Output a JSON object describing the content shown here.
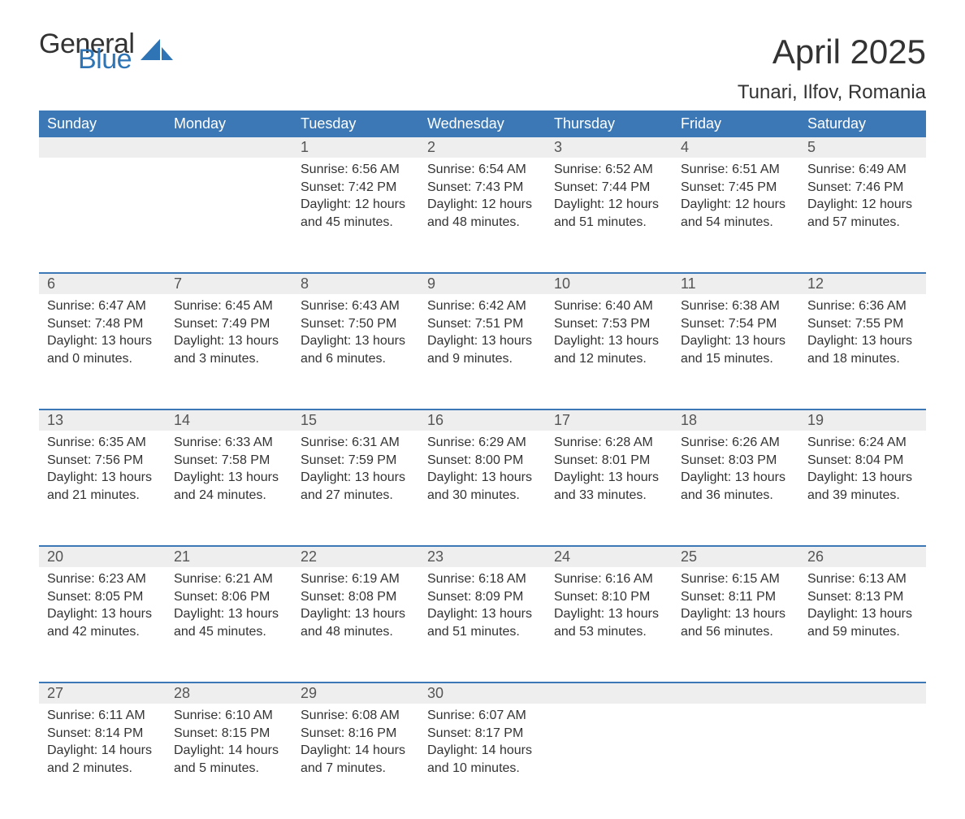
{
  "brand": {
    "part1": "General",
    "part2": "Blue"
  },
  "title": "April 2025",
  "location": "Tunari, Ilfov, Romania",
  "colors": {
    "header_bg": "#3b78b5",
    "header_text": "#ffffff",
    "daynum_bg": "#eeeeee",
    "border_top": "#3b78b5",
    "body_text": "#333333",
    "logo_blue": "#2f75b5",
    "page_bg": "#ffffff"
  },
  "fonts": {
    "title_size": 42,
    "location_size": 24,
    "header_size": 18,
    "daynum_size": 18,
    "cell_size": 16
  },
  "weekdays": [
    "Sunday",
    "Monday",
    "Tuesday",
    "Wednesday",
    "Thursday",
    "Friday",
    "Saturday"
  ],
  "weeks": [
    [
      null,
      null,
      {
        "day": "1",
        "sunrise": "6:56 AM",
        "sunset": "7:42 PM",
        "dl_h": "12",
        "dl_m": "45"
      },
      {
        "day": "2",
        "sunrise": "6:54 AM",
        "sunset": "7:43 PM",
        "dl_h": "12",
        "dl_m": "48"
      },
      {
        "day": "3",
        "sunrise": "6:52 AM",
        "sunset": "7:44 PM",
        "dl_h": "12",
        "dl_m": "51"
      },
      {
        "day": "4",
        "sunrise": "6:51 AM",
        "sunset": "7:45 PM",
        "dl_h": "12",
        "dl_m": "54"
      },
      {
        "day": "5",
        "sunrise": "6:49 AM",
        "sunset": "7:46 PM",
        "dl_h": "12",
        "dl_m": "57"
      }
    ],
    [
      {
        "day": "6",
        "sunrise": "6:47 AM",
        "sunset": "7:48 PM",
        "dl_h": "13",
        "dl_m": "0"
      },
      {
        "day": "7",
        "sunrise": "6:45 AM",
        "sunset": "7:49 PM",
        "dl_h": "13",
        "dl_m": "3"
      },
      {
        "day": "8",
        "sunrise": "6:43 AM",
        "sunset": "7:50 PM",
        "dl_h": "13",
        "dl_m": "6"
      },
      {
        "day": "9",
        "sunrise": "6:42 AM",
        "sunset": "7:51 PM",
        "dl_h": "13",
        "dl_m": "9"
      },
      {
        "day": "10",
        "sunrise": "6:40 AM",
        "sunset": "7:53 PM",
        "dl_h": "13",
        "dl_m": "12"
      },
      {
        "day": "11",
        "sunrise": "6:38 AM",
        "sunset": "7:54 PM",
        "dl_h": "13",
        "dl_m": "15"
      },
      {
        "day": "12",
        "sunrise": "6:36 AM",
        "sunset": "7:55 PM",
        "dl_h": "13",
        "dl_m": "18"
      }
    ],
    [
      {
        "day": "13",
        "sunrise": "6:35 AM",
        "sunset": "7:56 PM",
        "dl_h": "13",
        "dl_m": "21"
      },
      {
        "day": "14",
        "sunrise": "6:33 AM",
        "sunset": "7:58 PM",
        "dl_h": "13",
        "dl_m": "24"
      },
      {
        "day": "15",
        "sunrise": "6:31 AM",
        "sunset": "7:59 PM",
        "dl_h": "13",
        "dl_m": "27"
      },
      {
        "day": "16",
        "sunrise": "6:29 AM",
        "sunset": "8:00 PM",
        "dl_h": "13",
        "dl_m": "30"
      },
      {
        "day": "17",
        "sunrise": "6:28 AM",
        "sunset": "8:01 PM",
        "dl_h": "13",
        "dl_m": "33"
      },
      {
        "day": "18",
        "sunrise": "6:26 AM",
        "sunset": "8:03 PM",
        "dl_h": "13",
        "dl_m": "36"
      },
      {
        "day": "19",
        "sunrise": "6:24 AM",
        "sunset": "8:04 PM",
        "dl_h": "13",
        "dl_m": "39"
      }
    ],
    [
      {
        "day": "20",
        "sunrise": "6:23 AM",
        "sunset": "8:05 PM",
        "dl_h": "13",
        "dl_m": "42"
      },
      {
        "day": "21",
        "sunrise": "6:21 AM",
        "sunset": "8:06 PM",
        "dl_h": "13",
        "dl_m": "45"
      },
      {
        "day": "22",
        "sunrise": "6:19 AM",
        "sunset": "8:08 PM",
        "dl_h": "13",
        "dl_m": "48"
      },
      {
        "day": "23",
        "sunrise": "6:18 AM",
        "sunset": "8:09 PM",
        "dl_h": "13",
        "dl_m": "51"
      },
      {
        "day": "24",
        "sunrise": "6:16 AM",
        "sunset": "8:10 PM",
        "dl_h": "13",
        "dl_m": "53"
      },
      {
        "day": "25",
        "sunrise": "6:15 AM",
        "sunset": "8:11 PM",
        "dl_h": "13",
        "dl_m": "56"
      },
      {
        "day": "26",
        "sunrise": "6:13 AM",
        "sunset": "8:13 PM",
        "dl_h": "13",
        "dl_m": "59"
      }
    ],
    [
      {
        "day": "27",
        "sunrise": "6:11 AM",
        "sunset": "8:14 PM",
        "dl_h": "14",
        "dl_m": "2"
      },
      {
        "day": "28",
        "sunrise": "6:10 AM",
        "sunset": "8:15 PM",
        "dl_h": "14",
        "dl_m": "5"
      },
      {
        "day": "29",
        "sunrise": "6:08 AM",
        "sunset": "8:16 PM",
        "dl_h": "14",
        "dl_m": "7"
      },
      {
        "day": "30",
        "sunrise": "6:07 AM",
        "sunset": "8:17 PM",
        "dl_h": "14",
        "dl_m": "10"
      },
      null,
      null,
      null
    ]
  ],
  "labels": {
    "sunrise": "Sunrise: ",
    "sunset": "Sunset: ",
    "daylight1": "Daylight: ",
    "daylight2": " hours and ",
    "daylight3": " minutes."
  }
}
